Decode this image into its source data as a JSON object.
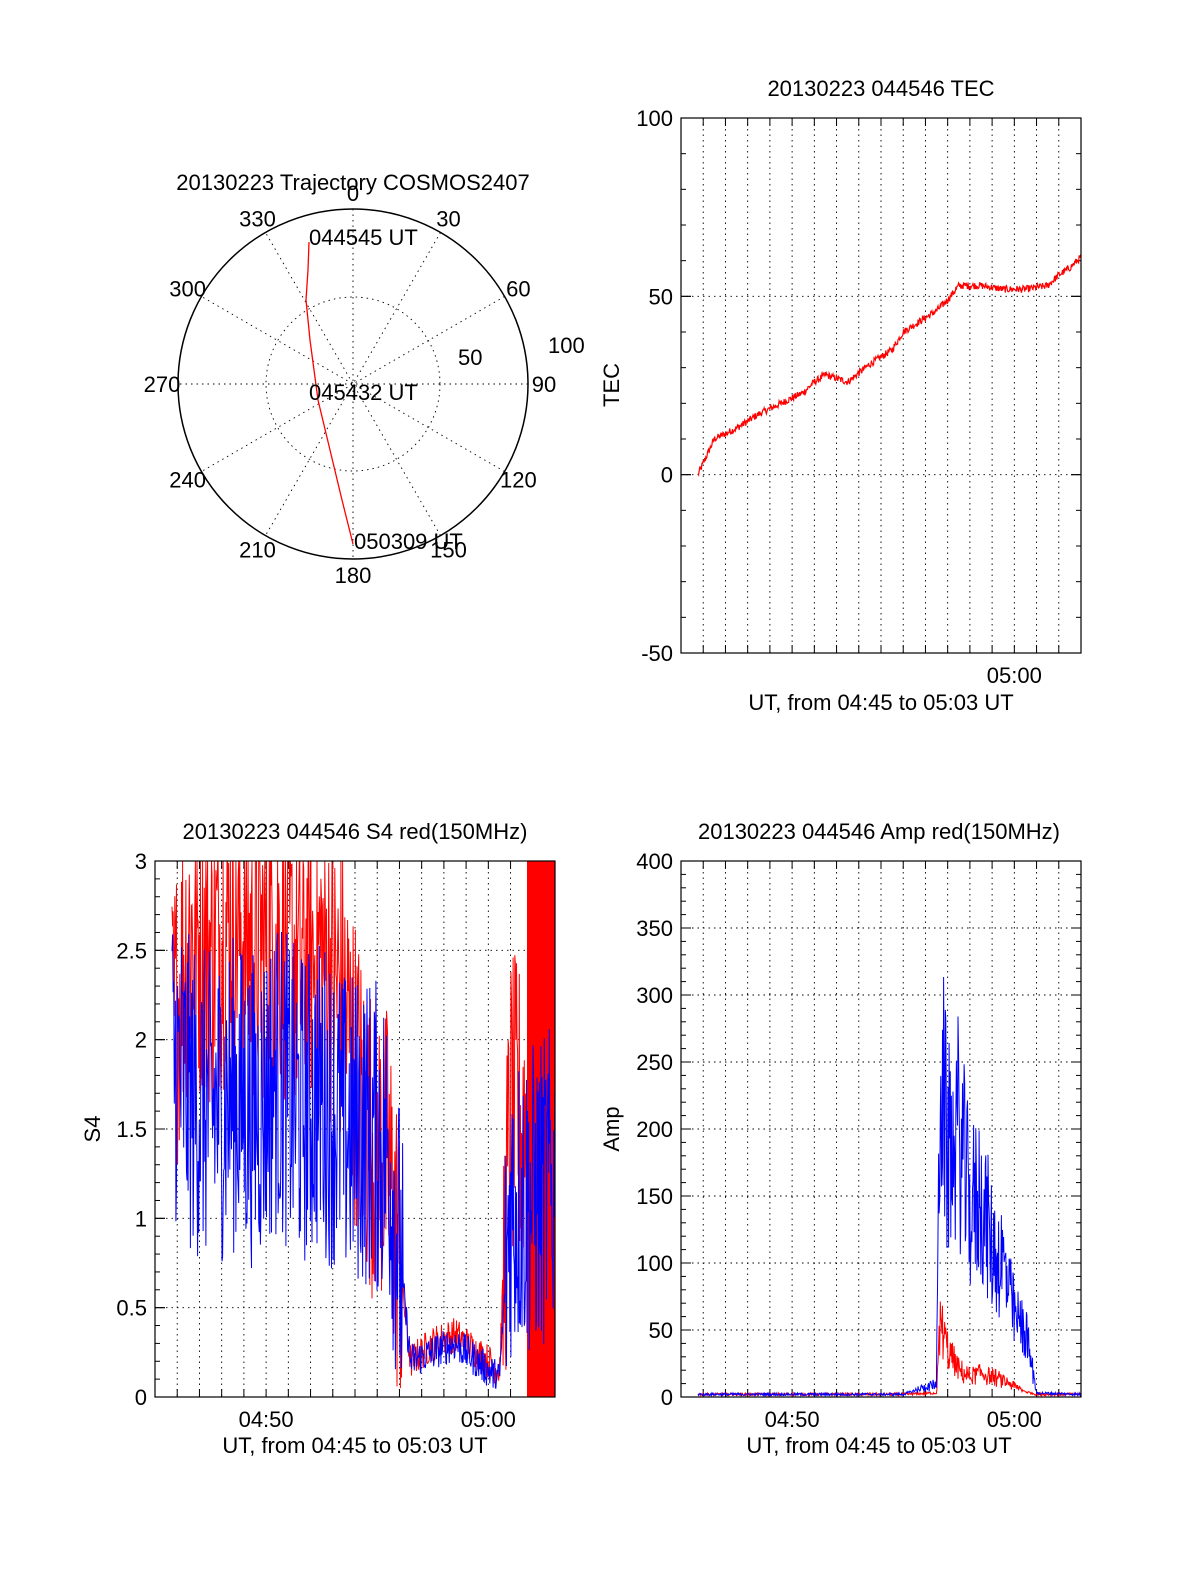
{
  "colors": {
    "red": "#ff0000",
    "blue": "#0000ff",
    "axes": "#000000"
  },
  "polar": {
    "title": "20130223 Trajectory COSMOS2407",
    "angle_labels": [
      "0",
      "30",
      "60",
      "90",
      "120",
      "150",
      "180",
      "210",
      "240",
      "270",
      "300",
      "330"
    ],
    "radius_labels": [
      "100",
      "50"
    ],
    "annotations": {
      "start": "044545 UT",
      "middle": "045432 UT",
      "end": "050309 UT"
    }
  },
  "chart_data": [
    {
      "type": "line",
      "title": "20130223 044546 TEC",
      "xlabel": "UT, from 04:45 to 05:03 UT",
      "ylabel": "TEC",
      "xlim": [
        "04:45",
        "05:03"
      ],
      "ylim": [
        -50,
        100
      ],
      "yticks": [
        "100",
        "50",
        "0",
        "-50"
      ],
      "xticks": [
        "05:00"
      ],
      "grid": true,
      "series": [
        {
          "color": "#ff0000",
          "x": [
            "04:45:46",
            "04:46:30",
            "04:47:30",
            "04:48:30",
            "04:49:30",
            "04:50:30",
            "04:51:00",
            "04:51:30",
            "04:52:00",
            "04:52:30",
            "04:53:30",
            "04:54:30",
            "04:55:00",
            "04:55:30",
            "04:56:00",
            "04:56:30",
            "04:57:00",
            "04:57:30",
            "04:58:00",
            "04:58:30",
            "04:59:30",
            "05:00:30",
            "05:01:30",
            "05:02:00",
            "05:02:30",
            "05:03:00"
          ],
          "y": [
            0,
            10,
            13,
            17,
            20,
            23,
            26,
            28,
            27,
            26,
            31,
            35,
            40,
            42,
            44,
            46,
            49,
            53,
            53,
            53,
            52,
            52,
            53,
            56,
            58,
            61
          ]
        }
      ]
    },
    {
      "type": "line",
      "title": "20130223 044546 S4 red(150MHz)",
      "xlabel": "UT, from 04:45 to 05:03 UT",
      "ylabel": "S4",
      "xlim": [
        "04:45",
        "05:03"
      ],
      "ylim": [
        0,
        3
      ],
      "yticks": [
        "3",
        "2.5",
        "2",
        "1.5",
        "1",
        "0.5",
        "0"
      ],
      "xticks": [
        "04:50",
        "05:00"
      ],
      "grid": true,
      "series": [
        {
          "name": "red",
          "color": "#ff0000",
          "x": [
            "04:45:46",
            "04:46:30",
            "04:47:30",
            "04:48:30",
            "04:49:30",
            "04:50:30",
            "04:51:30",
            "04:52:30",
            "04:53:30",
            "04:54:30",
            "04:55:30",
            "04:56:30",
            "04:57:30",
            "04:58:30",
            "04:59:30",
            "05:00:00",
            "05:00:30",
            "05:01:00",
            "05:02:00",
            "05:03:00"
          ],
          "y": [
            2.0,
            2.6,
            2.5,
            2.7,
            2.5,
            2.6,
            2.4,
            2.5,
            2.2,
            1.5,
            1.3,
            0.2,
            0.3,
            0.35,
            0.25,
            0.2,
            0.15,
            1.6,
            1.5,
            1.5
          ]
        },
        {
          "name": "blue",
          "color": "#0000ff",
          "x": [
            "04:45:46",
            "04:46:30",
            "04:47:30",
            "04:48:30",
            "04:49:30",
            "04:50:30",
            "04:51:30",
            "04:52:30",
            "04:53:30",
            "04:54:30",
            "04:55:30",
            "04:56:30",
            "04:57:30",
            "04:58:30",
            "04:59:30",
            "05:00:00",
            "05:00:30",
            "05:01:00",
            "05:02:00",
            "05:03:00"
          ],
          "y": [
            1.9,
            1.7,
            1.6,
            1.7,
            1.6,
            1.8,
            1.6,
            1.7,
            1.5,
            1.5,
            1.4,
            0.2,
            0.25,
            0.3,
            0.2,
            0.15,
            0.1,
            1.1,
            1.1,
            1.2
          ]
        }
      ]
    },
    {
      "type": "line",
      "title": "20130223 044546 Amp red(150MHz)",
      "xlabel": "UT, from 04:45 to 05:03 UT",
      "ylabel": "Amp",
      "xlim": [
        "04:45",
        "05:03"
      ],
      "ylim": [
        0,
        400
      ],
      "yticks": [
        "400",
        "350",
        "300",
        "250",
        "200",
        "150",
        "100",
        "50",
        "0"
      ],
      "xticks": [
        "04:50",
        "05:00"
      ],
      "grid": true,
      "series": [
        {
          "name": "red",
          "color": "#ff0000",
          "x": [
            "04:45:46",
            "04:50:00",
            "04:55:00",
            "04:56:30",
            "04:56:40",
            "04:57:00",
            "04:57:30",
            "04:58:00",
            "04:58:30",
            "04:59:00",
            "04:59:30",
            "05:00:00",
            "05:00:30",
            "05:01:00",
            "05:03:00"
          ],
          "y": [
            2,
            2,
            2,
            3,
            55,
            35,
            20,
            15,
            18,
            15,
            12,
            8,
            4,
            2,
            2
          ]
        },
        {
          "name": "blue",
          "color": "#0000ff",
          "x": [
            "04:45:46",
            "04:50:00",
            "04:55:00",
            "04:56:30",
            "04:56:40",
            "04:57:00",
            "04:57:30",
            "04:58:00",
            "04:58:30",
            "04:59:00",
            "04:59:30",
            "05:00:00",
            "05:00:30",
            "05:01:00",
            "05:03:00"
          ],
          "y": [
            2,
            2,
            2,
            10,
            250,
            180,
            200,
            140,
            150,
            110,
            100,
            60,
            50,
            3,
            2
          ]
        }
      ]
    }
  ]
}
